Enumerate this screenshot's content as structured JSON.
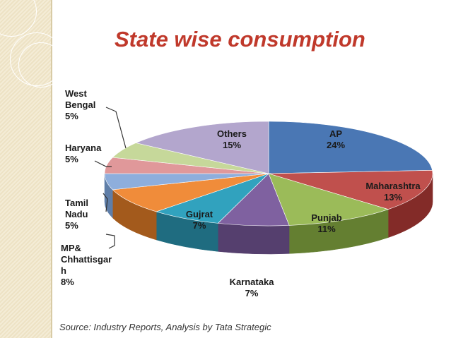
{
  "title": "State wise consumption",
  "source": "Source: Industry Reports, Analysis by Tata Strategic",
  "chart_data": {
    "type": "pie",
    "title": "State wise consumption",
    "slices": [
      {
        "label": "AP",
        "value": 24,
        "value_text": "24%",
        "color": "#4a77b4",
        "side": "#2f5180"
      },
      {
        "label": "Maharashtra",
        "value": 13,
        "value_text": "13%",
        "color": "#c0504d",
        "side": "#832b28"
      },
      {
        "label": "Punjab",
        "value": 11,
        "value_text": "11%",
        "color": "#9bbb59",
        "side": "#647f31"
      },
      {
        "label": "Karnataka",
        "value": 7,
        "value_text": "7%",
        "color": "#7f61a0",
        "side": "#553f6e"
      },
      {
        "label": "Gujrat",
        "value": 7,
        "value_text": "7%",
        "color": "#31a2be",
        "side": "#1f6c80"
      },
      {
        "label": "MP& Chhattisgarh",
        "value": 8,
        "value_text": "8%",
        "color": "#f08c3a",
        "side": "#a35a1c"
      },
      {
        "label": "Tamil Nadu",
        "value": 5,
        "value_text": "5%",
        "color": "#8eaedc",
        "side": "#5f7ea8"
      },
      {
        "label": "Haryana",
        "value": 5,
        "value_text": "5%",
        "color": "#e0989a",
        "side": "#a4676a"
      },
      {
        "label": "West Bengal",
        "value": 5,
        "value_text": "5%",
        "color": "#c6d89a",
        "side": "#8aa063"
      },
      {
        "label": "Others",
        "value": 15,
        "value_text": "15%",
        "color": "#b3a6cd",
        "side": "#7b6f97"
      }
    ],
    "labels": [
      {
        "name": "AP",
        "lines": [
          "AP",
          "24%"
        ]
      },
      {
        "name": "Maharashtra",
        "lines": [
          "Maharashtra",
          "13%"
        ]
      },
      {
        "name": "Punjab",
        "lines": [
          "Punjab",
          "11%"
        ]
      },
      {
        "name": "Karnataka",
        "lines": [
          "Karnataka",
          "7%"
        ]
      },
      {
        "name": "Gujrat",
        "lines": [
          "Gujrat",
          "7%"
        ]
      },
      {
        "name": "MP& Chhattisgarh",
        "lines": [
          "MP&",
          "Chhattisgar",
          "h",
          "8%"
        ]
      },
      {
        "name": "Tamil Nadu",
        "lines": [
          "Tamil",
          "Nadu",
          "5%"
        ]
      },
      {
        "name": "Haryana",
        "lines": [
          "Haryana",
          "5%"
        ]
      },
      {
        "name": "West Bengal",
        "lines": [
          "West",
          "Bengal",
          "5%"
        ]
      },
      {
        "name": "Others",
        "lines": [
          "Others",
          "15%"
        ]
      }
    ]
  }
}
